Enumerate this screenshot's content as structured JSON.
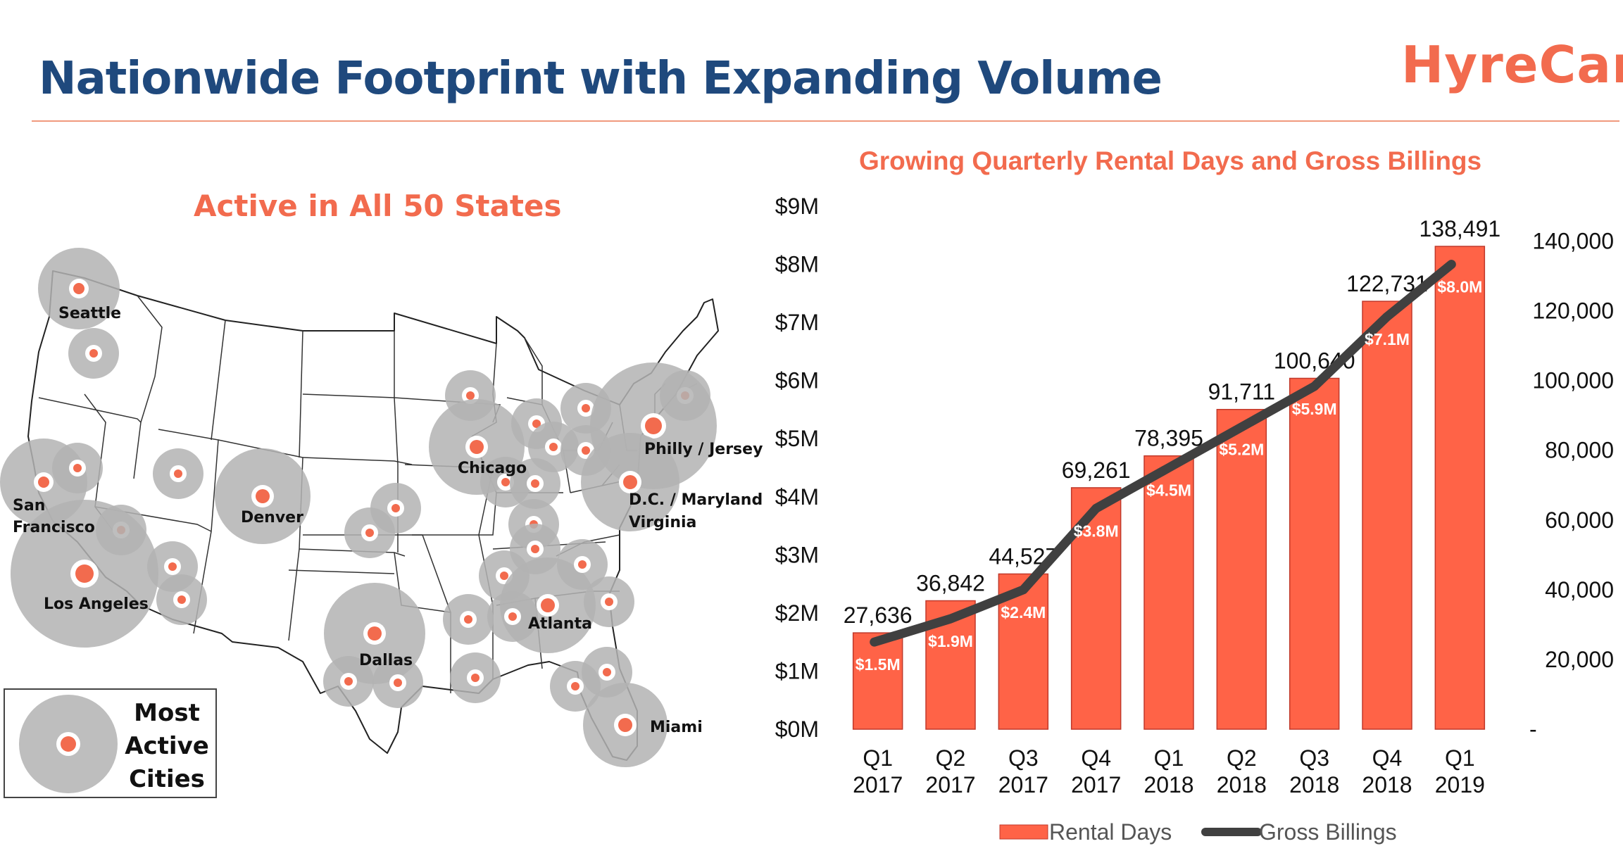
{
  "header": {
    "title": "Nationwide Footprint with Expanding Volume",
    "logo": "HyreCar"
  },
  "map": {
    "title": "Active in All 50 States",
    "legend_lines": [
      "Most",
      "Active",
      "Cities"
    ],
    "labels": {
      "seattle": "Seattle",
      "san_francisco_1": "San",
      "san_francisco_2": "Francisco",
      "los_angeles": "Los Angeles",
      "denver": "Denver",
      "dallas": "Dallas",
      "chicago": "Chicago",
      "atlanta": "Atlanta",
      "miami": "Miami",
      "philly": "Philly / Jersey",
      "dc_1": "D.C. / Maryland",
      "dc_2": "Virginia"
    }
  },
  "colors": {
    "bar": "#FF6347",
    "line": "#404040",
    "title": "#1F497D",
    "accent": "#F26B4E",
    "circle": "#B3B3B3"
  },
  "chart_data": {
    "type": "bar",
    "title": "Growing Quarterly Rental Days and Gross Billings",
    "categories": [
      [
        "Q1",
        "2017"
      ],
      [
        "Q2",
        "2017"
      ],
      [
        "Q3",
        "2017"
      ],
      [
        "Q4",
        "2017"
      ],
      [
        "Q1",
        "2018"
      ],
      [
        "Q2",
        "2018"
      ],
      [
        "Q3",
        "2018"
      ],
      [
        "Q4",
        "2018"
      ],
      [
        "Q1",
        "2019"
      ]
    ],
    "series": [
      {
        "name": "Rental Days",
        "type": "bar",
        "axis": "right",
        "values": [
          27636,
          36842,
          44527,
          69261,
          78395,
          91711,
          100640,
          122731,
          138491
        ],
        "labels": [
          "27,636",
          "36,842",
          "44,527",
          "69,261",
          "78,395",
          "91,711",
          "100,640",
          "122,731",
          "138,491"
        ]
      },
      {
        "name": "Gross Billings",
        "type": "line",
        "axis": "left",
        "values": [
          1.5,
          1.9,
          2.4,
          3.8,
          4.5,
          5.2,
          5.9,
          7.1,
          8.0
        ],
        "labels": [
          "$1.5M",
          "$1.9M",
          "$2.4M",
          "$3.8M",
          "$4.5M",
          "$5.2M",
          "$5.9M",
          "$7.1M",
          "$8.0M"
        ]
      }
    ],
    "left_axis": {
      "ylim": [
        0,
        9
      ],
      "ticks": [
        0,
        1,
        2,
        3,
        4,
        5,
        6,
        7,
        8,
        9
      ],
      "tick_labels": [
        "$0M",
        "$1M",
        "$2M",
        "$3M",
        "$4M",
        "$5M",
        "$6M",
        "$7M",
        "$8M",
        "$9M"
      ]
    },
    "right_axis": {
      "ylim": [
        0,
        150000
      ],
      "ticks": [
        0,
        20000,
        40000,
        60000,
        80000,
        100000,
        120000,
        140000
      ],
      "tick_labels": [
        "-",
        "20,000",
        "40,000",
        "60,000",
        "80,000",
        "100,000",
        "120,000",
        "140,000"
      ]
    },
    "legend_position": "bottom",
    "grid": false
  }
}
